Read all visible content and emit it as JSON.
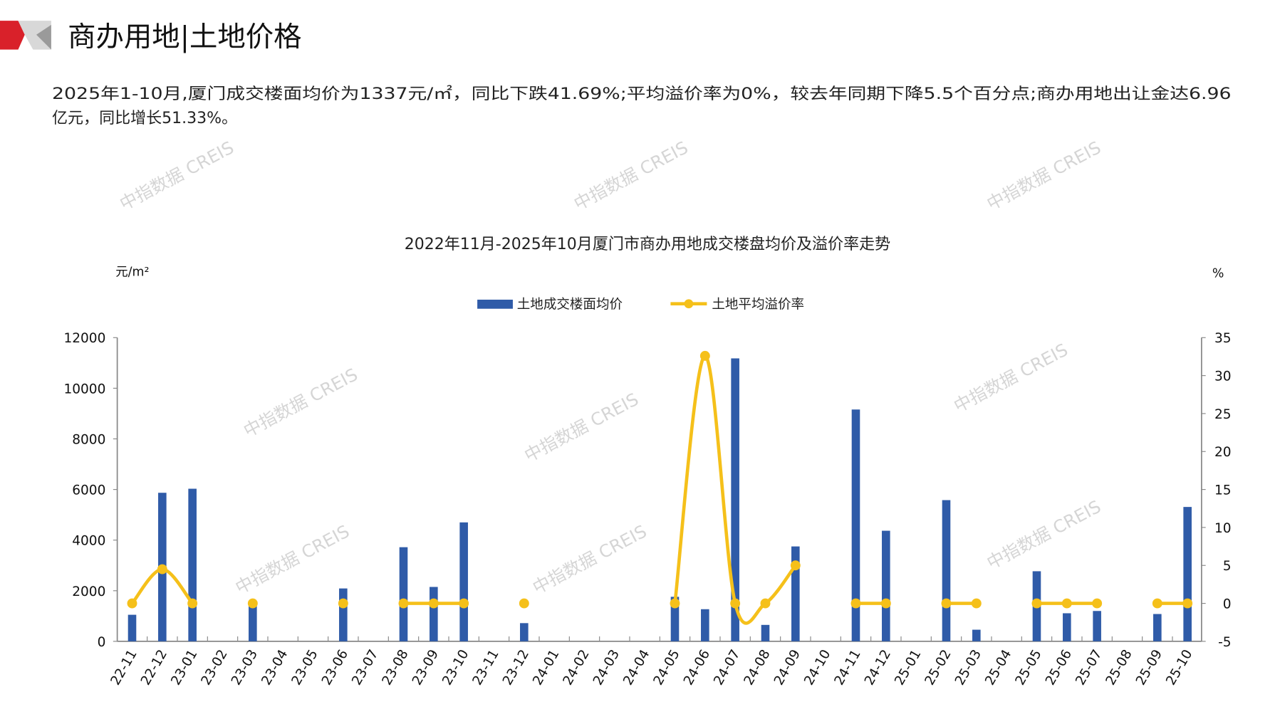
{
  "header": {
    "title": "商办用地|土地价格"
  },
  "summary": {
    "line1": "2025年1-10月,厦门成交楼面均价为1337元/㎡，同比下跌41.69%;平均溢价率为0%，较去年同期下降5.5个百分点;商办用地出让金达6.96",
    "line2": "亿元，同比增长51.33%。"
  },
  "watermark": "中指数据 CREIS",
  "colors": {
    "bar": "#2f5ba8",
    "line": "#f5c01a",
    "accent_red": "#d9212a",
    "accent_grey": "#b5b5b5"
  },
  "chart_data": {
    "type": "bar+line",
    "title": "2022年11月-2025年10月厦门市商办用地成交楼盘均价及溢价率走势",
    "y_left_label": "元/m²",
    "y_right_label": "%",
    "y_left_lim": [
      0,
      12000
    ],
    "y_left_ticks": [
      0,
      2000,
      4000,
      6000,
      8000,
      10000,
      12000
    ],
    "y_right_lim": [
      -5,
      35
    ],
    "y_right_ticks": [
      -5,
      0,
      5,
      10,
      15,
      20,
      25,
      30,
      35
    ],
    "legend_position": "top-center",
    "grid": false,
    "categories": [
      "22-11",
      "22-12",
      "23-01",
      "23-02",
      "23-03",
      "23-04",
      "23-05",
      "23-06",
      "23-07",
      "23-08",
      "23-09",
      "23-10",
      "23-11",
      "23-12",
      "24-01",
      "24-02",
      "24-03",
      "24-04",
      "24-05",
      "24-06",
      "24-07",
      "24-08",
      "24-09",
      "24-10",
      "24-11",
      "24-12",
      "25-01",
      "25-02",
      "25-03",
      "25-04",
      "25-05",
      "25-06",
      "25-07",
      "25-08",
      "25-09",
      "25-10"
    ],
    "series": [
      {
        "name": "土地成交楼面均价",
        "type": "bar",
        "axis": "left",
        "values": [
          1050,
          5870,
          6030,
          null,
          1400,
          null,
          null,
          2090,
          null,
          3720,
          2150,
          4700,
          null,
          720,
          null,
          null,
          null,
          null,
          1760,
          1270,
          11180,
          650,
          3750,
          null,
          9160,
          4370,
          null,
          5580,
          460,
          null,
          2770,
          1110,
          1200,
          null,
          1080,
          5310
        ]
      },
      {
        "name": "土地平均溢价率",
        "type": "line",
        "axis": "right",
        "values": [
          0,
          4.5,
          0,
          null,
          0,
          null,
          null,
          0,
          null,
          0,
          0,
          0,
          null,
          0,
          null,
          null,
          null,
          null,
          0,
          32.6,
          0,
          0,
          5.0,
          null,
          0,
          0,
          null,
          0,
          0,
          null,
          0,
          0,
          0,
          null,
          0,
          0
        ]
      }
    ]
  }
}
